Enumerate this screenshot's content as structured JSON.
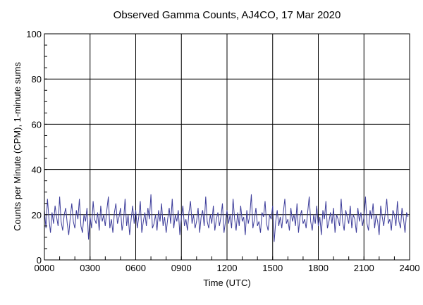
{
  "chart_data": {
    "type": "line",
    "title": "Observed Gamma Counts, AJ4CO, 17 Mar 2020",
    "xlabel": "Time (UTC)",
    "ylabel": "Counts per Minute (CPM), 1-minute sums",
    "xlim": [
      0,
      24
    ],
    "ylim": [
      0,
      100
    ],
    "x_ticks": [
      0,
      3,
      6,
      9,
      12,
      15,
      18,
      21,
      24
    ],
    "x_tick_labels": [
      "0000",
      "0300",
      "0600",
      "0900",
      "1200",
      "1500",
      "1800",
      "2100",
      "2400"
    ],
    "y_ticks": [
      0,
      20,
      40,
      60,
      80,
      100
    ],
    "y_tick_labels": [
      "0",
      "20",
      "40",
      "60",
      "80",
      "100"
    ],
    "grid": true,
    "series_color": "#3c3c9a",
    "series": [
      {
        "name": "CPM",
        "x_step_hours": 0.1,
        "values": [
          22,
          14,
          27,
          18,
          12,
          21,
          16,
          24,
          19,
          15,
          28,
          17,
          13,
          20,
          23,
          16,
          11,
          19,
          25,
          17,
          14,
          22,
          18,
          27,
          15,
          12,
          20,
          17,
          23,
          9,
          19,
          14,
          26,
          18,
          16,
          21,
          13,
          24,
          17,
          20,
          15,
          22,
          28,
          14,
          18,
          12,
          21,
          25,
          16,
          19,
          23,
          13,
          17,
          27,
          15,
          20,
          11,
          18,
          24,
          16,
          22,
          14,
          19,
          26,
          12,
          17,
          21,
          15,
          23,
          18,
          29,
          14,
          16,
          20,
          13,
          22,
          17,
          25,
          15,
          19,
          12,
          18,
          23,
          16,
          27,
          14,
          20,
          17,
          22,
          11,
          19,
          24,
          15,
          18,
          13,
          21,
          26,
          16,
          20,
          14,
          17,
          23,
          12,
          19,
          22,
          15,
          28,
          17,
          14,
          20,
          16,
          24,
          13,
          18,
          21,
          15,
          19,
          25,
          12,
          17,
          22,
          16,
          20,
          14,
          27,
          18,
          13,
          21,
          15,
          24,
          17,
          19,
          11,
          22,
          16,
          20,
          29,
          14,
          18,
          23,
          15,
          17,
          12,
          21,
          19,
          26,
          16,
          13,
          20,
          18,
          24,
          8,
          17,
          22,
          15,
          19,
          14,
          21,
          27,
          16,
          18,
          13,
          23,
          17,
          20,
          15,
          25,
          12,
          19,
          22,
          16,
          18,
          14,
          21,
          28,
          17,
          13,
          20,
          16,
          24,
          15,
          19,
          11,
          22,
          18,
          26,
          14,
          17,
          21,
          16,
          23,
          12,
          20,
          18,
          15,
          27,
          17,
          13,
          22,
          19,
          16,
          24,
          14,
          20,
          18,
          12,
          23,
          17,
          21,
          15,
          19,
          28,
          16,
          13,
          22,
          18,
          25,
          14,
          20,
          17,
          11,
          24,
          19,
          15,
          21,
          27,
          16,
          18,
          13,
          22,
          20,
          15,
          26,
          17,
          14,
          23,
          18,
          12,
          21,
          19
        ]
      }
    ]
  }
}
